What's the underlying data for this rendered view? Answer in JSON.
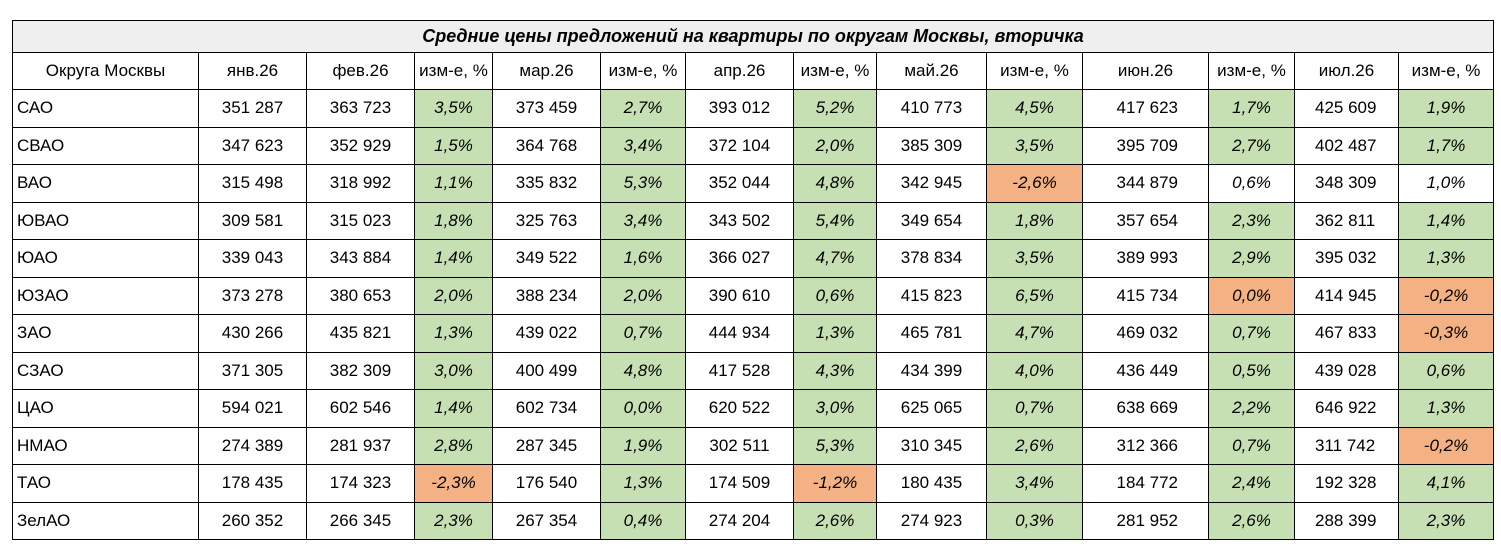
{
  "title": "Средние цены предложений на  квартиры по округам Москвы, вторичка",
  "headers": [
    "Округа Москвы",
    "янв.26",
    "фев.26",
    "изм-е, %",
    "мар.26",
    "изм-е, %",
    "апр.26",
    "изм-е, %",
    "май.26",
    "изм-е, %",
    "июн.26",
    "изм-е, %",
    "июл.26",
    "изм-е, %"
  ],
  "colors": {
    "positive": "#c6e0b4",
    "negative": "#f4b183",
    "title_bg": "#efefef"
  },
  "rows": [
    [
      "САО",
      "351 287",
      "363 723",
      "3,5%",
      "373 459",
      "2,7%",
      "393 012",
      "5,2%",
      "410 773",
      "4,5%",
      "417 623",
      "1,7%",
      "425 609",
      "1,9%"
    ],
    [
      "СВАО",
      "347 623",
      "352 929",
      "1,5%",
      "364 768",
      "3,4%",
      "372 104",
      "2,0%",
      "385 309",
      "3,5%",
      "395 709",
      "2,7%",
      "402 487",
      "1,7%"
    ],
    [
      "ВАО",
      "315 498",
      "318 992",
      "1,1%",
      "335 832",
      "5,3%",
      "352 044",
      "4,8%",
      "342 945",
      "-2,6%",
      "344 879",
      "0,6%",
      "348 309",
      "1,0%"
    ],
    [
      "ЮВАО",
      "309 581",
      "315 023",
      "1,8%",
      "325 763",
      "3,4%",
      "343 502",
      "5,4%",
      "349 654",
      "1,8%",
      "357 654",
      "2,3%",
      "362 811",
      "1,4%"
    ],
    [
      "ЮАО",
      "339 043",
      "343 884",
      "1,4%",
      "349 522",
      "1,6%",
      "366 027",
      "4,7%",
      "378 834",
      "3,5%",
      "389 993",
      "2,9%",
      "395 032",
      "1,3%"
    ],
    [
      "ЮЗАО",
      "373 278",
      "380 653",
      "2,0%",
      "388 234",
      "2,0%",
      "390 610",
      "0,6%",
      "415 823",
      "6,5%",
      "415 734",
      "0,0%",
      "414 945",
      "-0,2%"
    ],
    [
      "ЗАО",
      "430 266",
      "435 821",
      "1,3%",
      "439 022",
      "0,7%",
      "444 934",
      "1,3%",
      "465 781",
      "4,7%",
      "469 032",
      "0,7%",
      "467 833",
      "-0,3%"
    ],
    [
      "СЗАО",
      "371 305",
      "382 309",
      "3,0%",
      "400 499",
      "4,8%",
      "417 528",
      "4,3%",
      "434 399",
      "4,0%",
      "436 449",
      "0,5%",
      "439 028",
      "0,6%"
    ],
    [
      "ЦАО",
      "594 021",
      "602 546",
      "1,4%",
      "602 734",
      "0,0%",
      "620 522",
      "3,0%",
      "625 065",
      "0,7%",
      "638 669",
      "2,2%",
      "646 922",
      "1,3%"
    ],
    [
      "НМАО",
      "274 389",
      "281 937",
      "2,8%",
      "287 345",
      "1,9%",
      "302 511",
      "5,3%",
      "310 345",
      "2,6%",
      "312 366",
      "0,7%",
      "311 742",
      "-0,2%"
    ],
    [
      "ТАО",
      "178 435",
      "174 323",
      "-2,3%",
      "176 540",
      "1,3%",
      "174 509",
      "-1,2%",
      "180 435",
      "3,4%",
      "184 772",
      "2,4%",
      "192 328",
      "4,1%"
    ],
    [
      "ЗелАО",
      "260 352",
      "266 345",
      "2,3%",
      "267 354",
      "0,4%",
      "274 204",
      "2,6%",
      "274 923",
      "0,3%",
      "281 952",
      "2,6%",
      "288 399",
      "2,3%"
    ]
  ],
  "cell_fill": {
    "САО": [
      "pos",
      "pos",
      "pos",
      "pos",
      "pos",
      "pos"
    ],
    "СВАО": [
      "pos",
      "pos",
      "pos",
      "pos",
      "pos",
      "pos"
    ],
    "ВАО": [
      "pos",
      "pos",
      "pos",
      "neg",
      "none",
      "none"
    ],
    "ЮВАО": [
      "pos",
      "pos",
      "pos",
      "pos",
      "pos",
      "pos"
    ],
    "ЮАО": [
      "pos",
      "pos",
      "pos",
      "pos",
      "pos",
      "pos"
    ],
    "ЮЗАО": [
      "pos",
      "pos",
      "pos",
      "pos",
      "neg",
      "neg"
    ],
    "ЗАО": [
      "pos",
      "pos",
      "pos",
      "pos",
      "pos",
      "neg"
    ],
    "СЗАО": [
      "pos",
      "pos",
      "pos",
      "pos",
      "pos",
      "pos"
    ],
    "ЦАО": [
      "pos",
      "pos",
      "pos",
      "pos",
      "pos",
      "pos"
    ],
    "НМАО": [
      "pos",
      "pos",
      "pos",
      "pos",
      "pos",
      "neg"
    ],
    "ТАО": [
      "neg",
      "pos",
      "neg",
      "pos",
      "pos",
      "pos"
    ],
    "ЗелАО": [
      "pos",
      "pos",
      "pos",
      "pos",
      "pos",
      "pos"
    ]
  }
}
